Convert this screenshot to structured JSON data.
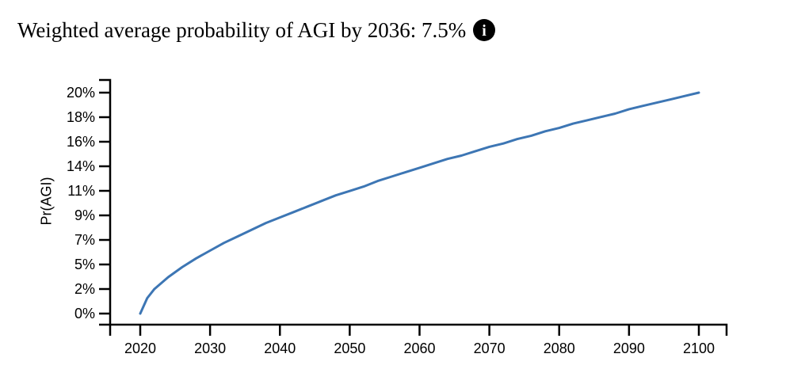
{
  "title": {
    "text": "Weighted average probability of AGI by 2036: 7.5%",
    "info_icon_glyph": "i"
  },
  "chart_data": {
    "type": "line",
    "title": "Weighted average probability of AGI by 2036: 7.5%",
    "xlabel": "",
    "ylabel": "Pr(AGI)",
    "x_domain": [
      2020,
      2100
    ],
    "y_domain_pct": [
      0,
      20
    ],
    "x_ticks": [
      2020,
      2030,
      2040,
      2050,
      2060,
      2070,
      2080,
      2090,
      2100
    ],
    "y_tick_labels": [
      "0%",
      "2%",
      "5%",
      "7%",
      "9%",
      "11%",
      "14%",
      "16%",
      "18%",
      "20%"
    ],
    "grid": false,
    "legend": "none",
    "line_color": "#3d76b4",
    "axis_color": "#000000",
    "series": [
      {
        "name": "Weighted average Pr(AGI)",
        "x": [
          2020,
          2021,
          2022,
          2024,
          2026,
          2028,
          2030,
          2032,
          2034,
          2036,
          2038,
          2040,
          2042,
          2044,
          2046,
          2048,
          2050,
          2052,
          2054,
          2056,
          2058,
          2060,
          2062,
          2064,
          2066,
          2068,
          2070,
          2072,
          2074,
          2076,
          2078,
          2080,
          2082,
          2084,
          2086,
          2088,
          2090,
          2092,
          2094,
          2096,
          2098,
          2100
        ],
        "y_pct": [
          0,
          1.4,
          2.2,
          3.3,
          4.2,
          5.0,
          5.7,
          6.4,
          7.0,
          7.6,
          8.2,
          8.7,
          9.2,
          9.7,
          10.2,
          10.7,
          11.1,
          11.5,
          12.0,
          12.4,
          12.8,
          13.2,
          13.6,
          14.0,
          14.3,
          14.7,
          15.1,
          15.4,
          15.8,
          16.1,
          16.5,
          16.8,
          17.2,
          17.5,
          17.8,
          18.1,
          18.5,
          18.8,
          19.1,
          19.4,
          19.7,
          20.0
        ]
      }
    ]
  }
}
